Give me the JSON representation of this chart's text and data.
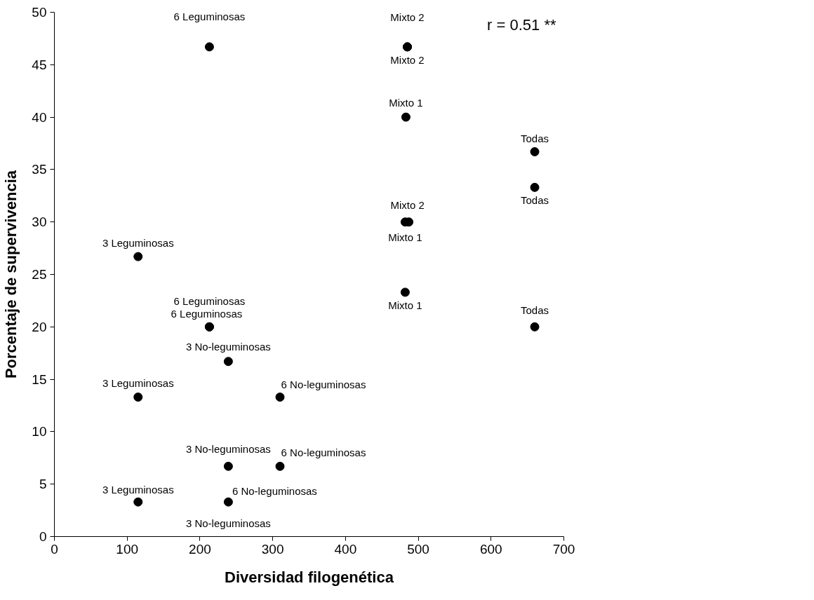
{
  "chart_data": {
    "type": "scatter",
    "xlabel": "Diversidad filogenética",
    "ylabel": "Porcentaje de supervivencia",
    "x": [
      213,
      485,
      485,
      483,
      660,
      660,
      482,
      487,
      115,
      482,
      213,
      213,
      660,
      239,
      115,
      310,
      239,
      310,
      115,
      239
    ],
    "series": [
      {
        "color": "#000000",
        "values": [
          46.7,
          46.7,
          46.7,
          40,
          36.7,
          33.3,
          30,
          30,
          26.7,
          23.3,
          20,
          20,
          20,
          16.7,
          13.3,
          13.3,
          6.7,
          6.7,
          3.3,
          3.3
        ]
      }
    ],
    "xlim": [
      0,
      700
    ],
    "xticks": [
      0,
      100,
      200,
      300,
      400,
      500,
      600,
      700
    ],
    "ylim": [
      0,
      50
    ],
    "yticks": [
      0,
      5,
      10,
      15,
      20,
      25,
      30,
      35,
      40,
      45,
      50
    ],
    "grid": false,
    "marker": "circle",
    "annotations": [
      "r = 0.51 **",
      {
        "text": "6 Leguminosas",
        "x": 213,
        "y": 46.7
      },
      {
        "text": "Mixto 2",
        "x": 485,
        "y": 46.7
      },
      {
        "text": "Mixto 2",
        "x": 485,
        "y": 46.7
      },
      {
        "text": "Mixto 1",
        "x": 483,
        "y": 40
      },
      {
        "text": "Todas",
        "x": 660,
        "y": 36.7
      },
      {
        "text": "Todas",
        "x": 660,
        "y": 33.3
      },
      {
        "text": "Mixto 2",
        "x": 487,
        "y": 30
      },
      {
        "text": "Mixto 1",
        "x": 482,
        "y": 30
      },
      {
        "text": "3 Leguminosas",
        "x": 115,
        "y": 26.7
      },
      {
        "text": "6 Leguminosas",
        "x": 213,
        "y": 20
      },
      {
        "text": "6 Leguminosas",
        "x": 213,
        "y": 20
      },
      {
        "text": "Mixto 1",
        "x": 482,
        "y": 23.3
      },
      {
        "text": "Todas",
        "x": 660,
        "y": 20
      },
      {
        "text": "3 No-leguminosas",
        "x": 239,
        "y": 16.7
      },
      {
        "text": "3 Leguminosas",
        "x": 115,
        "y": 13.3
      },
      {
        "text": "6 No-leguminosas",
        "x": 310,
        "y": 13.3
      },
      {
        "text": "3 No-leguminosas",
        "x": 239,
        "y": 6.7
      },
      {
        "text": "6 No-leguminosas",
        "x": 310,
        "y": 6.7
      },
      {
        "text": "3 Leguminosas",
        "x": 115,
        "y": 3.3
      },
      {
        "text": "6 No-leguminosas",
        "x": 239,
        "y": 3.3
      },
      {
        "text": "3 No-leguminosas",
        "x": 239,
        "y": 3.3
      }
    ]
  }
}
